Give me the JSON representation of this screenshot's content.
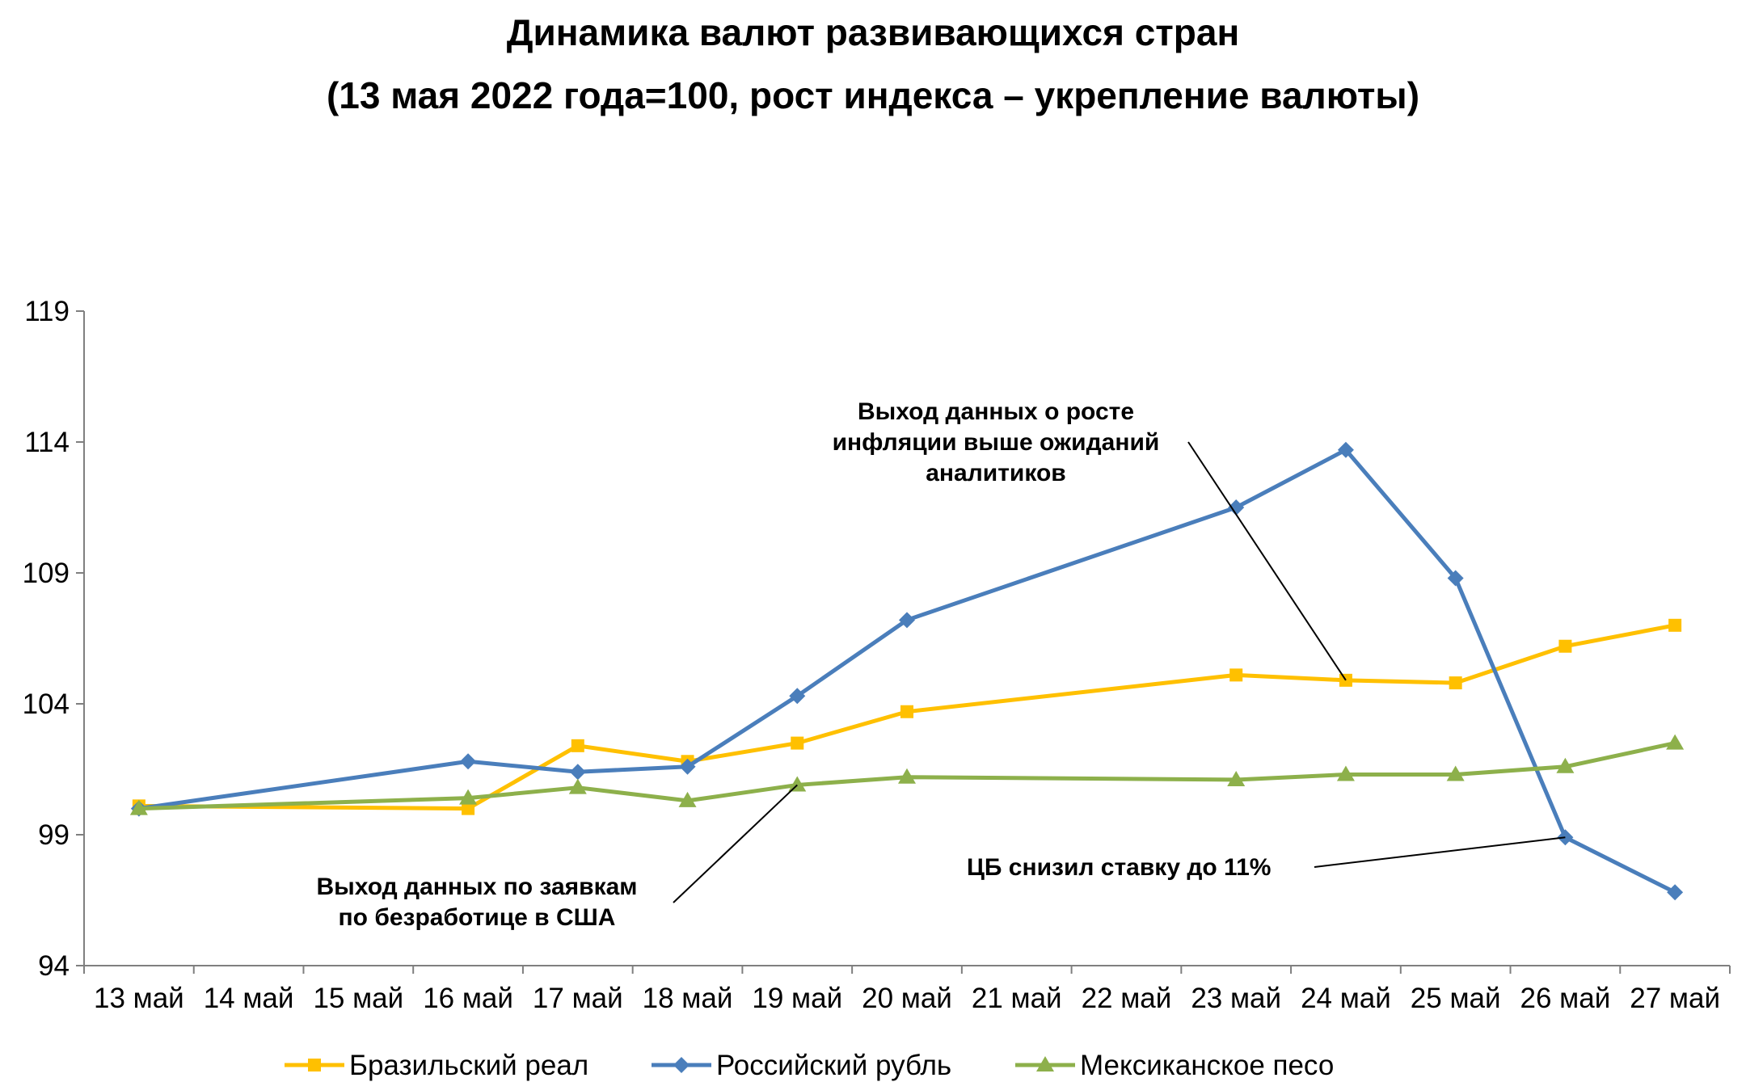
{
  "colors": {
    "brl": "#FFC000",
    "rub": "#4A7EBB",
    "mxn": "#8DB04B",
    "axis": "#7f7f7f"
  },
  "chart_data": {
    "type": "line",
    "title_line1": "Динамика валют развивающихся стран",
    "title_line2": "(13 мая 2022 года=100, рост индекса – укрепление валюты)",
    "categories": [
      "13 май",
      "14 май",
      "15 май",
      "16 май",
      "17 май",
      "18 май",
      "19 май",
      "20 май",
      "21 май",
      "22 май",
      "23 май",
      "24 май",
      "25 май",
      "26 май",
      "27 май"
    ],
    "ylim": [
      94,
      119
    ],
    "yticks": [
      "94",
      "99",
      "104",
      "109",
      "114",
      "119"
    ],
    "grid": false,
    "legend_position": "bottom",
    "series": [
      {
        "name": "Бразильский реал",
        "color_key": "brl",
        "marker": "square",
        "points": [
          {
            "x": "13 май",
            "y": 100.1
          },
          {
            "x": "16 май",
            "y": 100.0
          },
          {
            "x": "17 май",
            "y": 102.4
          },
          {
            "x": "18 май",
            "y": 101.8
          },
          {
            "x": "19 май",
            "y": 102.5
          },
          {
            "x": "20 май",
            "y": 103.7
          },
          {
            "x": "23 май",
            "y": 105.1
          },
          {
            "x": "24 май",
            "y": 104.9
          },
          {
            "x": "25 май",
            "y": 104.8
          },
          {
            "x": "26 май",
            "y": 106.2
          },
          {
            "x": "27 май",
            "y": 107.0
          }
        ]
      },
      {
        "name": "Российский рубль",
        "color_key": "rub",
        "marker": "diamond",
        "points": [
          {
            "x": "13 май",
            "y": 100.0
          },
          {
            "x": "16 май",
            "y": 101.8
          },
          {
            "x": "17 май",
            "y": 101.4
          },
          {
            "x": "18 май",
            "y": 101.6
          },
          {
            "x": "19 май",
            "y": 104.3
          },
          {
            "x": "20 май",
            "y": 107.2
          },
          {
            "x": "23 май",
            "y": 111.5
          },
          {
            "x": "24 май",
            "y": 113.7
          },
          {
            "x": "25 май",
            "y": 108.8
          },
          {
            "x": "26 май",
            "y": 98.9
          },
          {
            "x": "27 май",
            "y": 96.8
          }
        ]
      },
      {
        "name": "Мексиканское песо",
        "color_key": "mxn",
        "marker": "triangle",
        "points": [
          {
            "x": "13 май",
            "y": 100.0
          },
          {
            "x": "16 май",
            "y": 100.4
          },
          {
            "x": "17 май",
            "y": 100.8
          },
          {
            "x": "18 май",
            "y": 100.3
          },
          {
            "x": "19 май",
            "y": 100.9
          },
          {
            "x": "20 май",
            "y": 101.2
          },
          {
            "x": "23 май",
            "y": 101.1
          },
          {
            "x": "24 май",
            "y": 101.3
          },
          {
            "x": "25 май",
            "y": 101.3
          },
          {
            "x": "26 май",
            "y": 101.6
          },
          {
            "x": "27 май",
            "y": 102.5
          }
        ]
      }
    ],
    "annotations": [
      {
        "name": "annotation-inflation",
        "lines": [
          "Выход данных о росте",
          "инфляции выше ожиданий",
          "аналитиков"
        ],
        "series_index": 0,
        "x": "24 май"
      },
      {
        "name": "annotation-unemployment",
        "lines": [
          "Выход данных по заявкам",
          "по безработице в США"
        ],
        "series_index": 2,
        "x": "19 май"
      },
      {
        "name": "annotation-cb-rate",
        "lines": [
          "ЦБ снизил ставку до 11%"
        ],
        "series_index": 1,
        "x": "26 май"
      }
    ]
  }
}
